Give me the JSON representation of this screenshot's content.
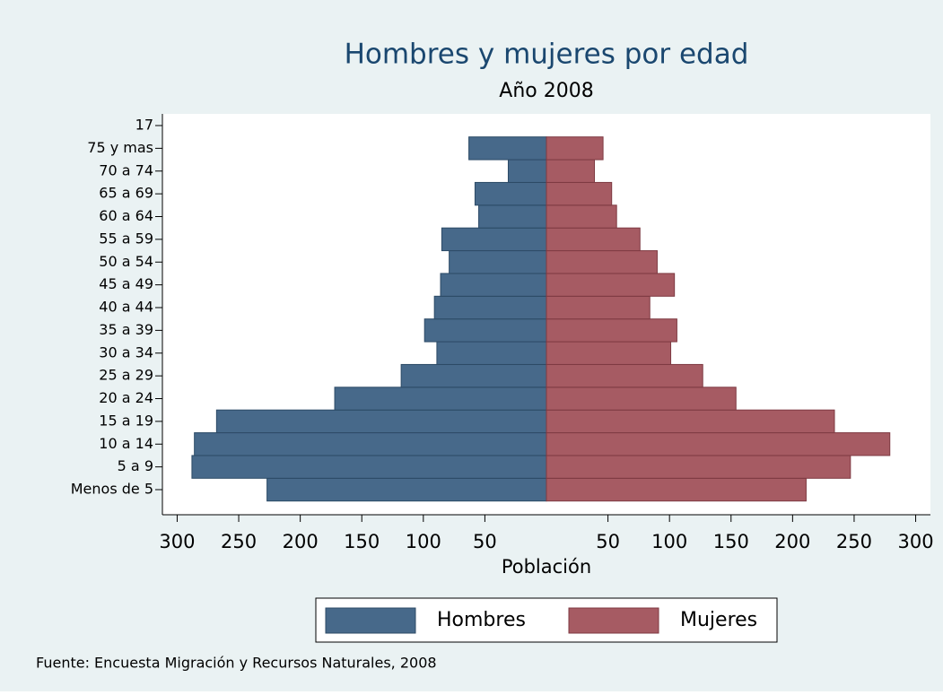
{
  "chart_data": {
    "type": "pyramid",
    "title": "Hombres y mujeres por edad",
    "subtitle": "Año 2008",
    "xlabel": "Población",
    "note": "Fuente:  Encuesta Migración y Recursos Naturales, 2008",
    "categories": [
      "Menos de 5",
      "5 a 9",
      "10 a 14",
      "15 a 19",
      "20 a 24",
      "25 a 29",
      "30 a 34",
      "35 a 39",
      "40 a 44",
      "45 a 49",
      "50 a 54",
      "55 a 59",
      "60 a 64",
      "65 a 69",
      "70 a 74",
      "75 y mas",
      "17"
    ],
    "series": [
      {
        "name": "Hombres",
        "color": "#47698a",
        "side": "left",
        "values": [
          227,
          288,
          286,
          268,
          172,
          118,
          89,
          99,
          91,
          86,
          79,
          85,
          55,
          58,
          31,
          63,
          null
        ]
      },
      {
        "name": "Mujeres",
        "color": "#a65b63",
        "side": "right",
        "values": [
          211,
          247,
          279,
          234,
          154,
          127,
          101,
          106,
          84,
          104,
          90,
          76,
          57,
          53,
          39,
          46,
          null
        ]
      }
    ],
    "xlim": [
      -312,
      312
    ],
    "xticks": [
      {
        "value": -300,
        "label": "300"
      },
      {
        "value": -250,
        "label": "250"
      },
      {
        "value": -200,
        "label": "200"
      },
      {
        "value": -150,
        "label": "150"
      },
      {
        "value": -100,
        "label": "100"
      },
      {
        "value": -50,
        "label": "50"
      },
      50,
      100,
      150,
      200,
      250,
      300
    ],
    "legend": "bottom"
  }
}
